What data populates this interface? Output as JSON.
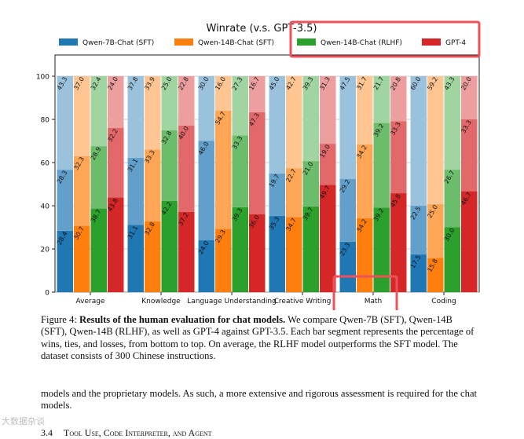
{
  "chart_data": {
    "type": "bar",
    "stacked": true,
    "title": "Winrate (v.s. GPT-3.5)",
    "legend_position": "top",
    "ylim": [
      0,
      100
    ],
    "yticks": [
      "0",
      "20",
      "40",
      "60",
      "80",
      "100"
    ],
    "grid": true,
    "categories": [
      "Average",
      "Knowledge",
      "Language Understanding",
      "Creative Writing",
      "Math",
      "Coding"
    ],
    "series": [
      {
        "name": "Qwen-7B-Chat (SFT)",
        "color": "#1f77b4",
        "win": [
          28.4,
          31.1,
          24.0,
          35.3,
          23.3,
          17.5
        ],
        "tie": [
          28.3,
          31.1,
          46.0,
          19.7,
          29.2,
          22.5
        ],
        "loss": [
          43.3,
          37.8,
          30.0,
          45.0,
          47.5,
          60.0
        ]
      },
      {
        "name": "Qwen-14B-Chat (SFT)",
        "color": "#ff7f0e",
        "win": [
          30.7,
          32.8,
          29.3,
          34.7,
          34.2,
          15.8
        ],
        "tie": [
          32.3,
          33.3,
          54.7,
          22.7,
          34.2,
          25.0
        ],
        "loss": [
          37.0,
          33.9,
          16.0,
          42.7,
          31.7,
          59.2
        ]
      },
      {
        "name": "Qwen-14B-Chat (RLHF)",
        "color": "#2ca02c",
        "win": [
          38.7,
          42.2,
          39.3,
          39.7,
          39.2,
          30.0
        ],
        "tie": [
          28.9,
          32.8,
          33.3,
          21.0,
          39.2,
          26.7
        ],
        "loss": [
          32.4,
          25.0,
          27.3,
          39.3,
          21.7,
          43.3
        ]
      },
      {
        "name": "GPT-4",
        "color": "#d62728",
        "win": [
          43.8,
          37.2,
          36.0,
          49.7,
          45.8,
          46.7
        ],
        "tie": [
          32.2,
          40.0,
          47.3,
          19.0,
          33.3,
          33.3
        ],
        "loss": [
          24.0,
          22.8,
          16.7,
          31.3,
          20.8,
          20.0
        ]
      }
    ]
  },
  "caption": {
    "label": "Figure 4:",
    "bold": "Results of the human evaluation for chat models.",
    "text": "We compare Qwen-7B (SFT), Qwen-14B (SFT), Qwen-14B (RLHF), as well as GPT-4 against GPT-3.5. Each bar segment represents the percentage of wins, ties, and losses, from bottom to top. On average, the RLHF model outperforms the SFT model. The dataset consists of 300 Chinese instructions."
  },
  "body_text": "models and the proprietary models. As such, a more extensive and rigorous assessment is required for the chat models.",
  "section": {
    "number": "3.4",
    "title": "Tool Use, Code Interpreter, and Agent"
  },
  "watermark": "大数据杂谈",
  "highlight_color": "#f0505a"
}
